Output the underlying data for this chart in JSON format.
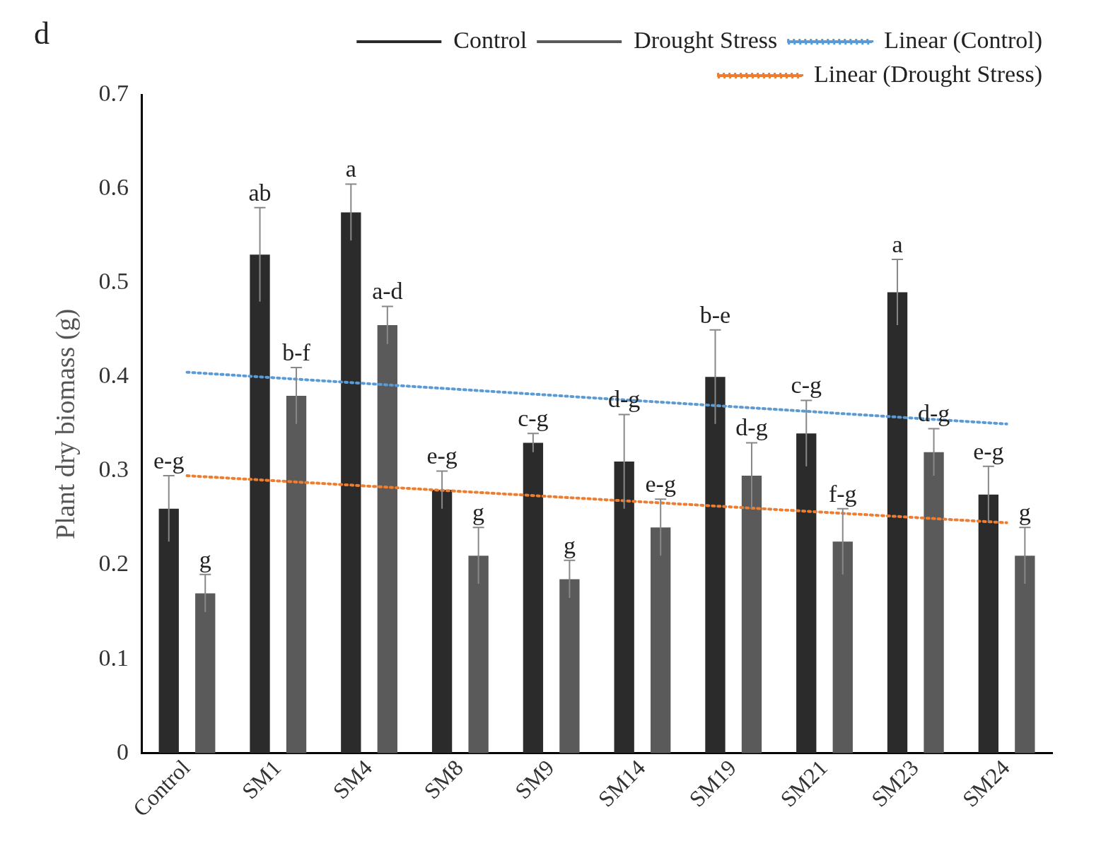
{
  "chart_data": {
    "type": "bar",
    "ylabel": "Plant dry biomass (g)",
    "categories": [
      "Control",
      "SM1",
      "SM4",
      "SM8",
      "SM9",
      "SM14",
      "SM19",
      "SM21",
      "SM23",
      "SM24"
    ],
    "series": [
      {
        "name": "Control",
        "color": "#2b2b2b",
        "values": [
          0.26,
          0.53,
          0.575,
          0.28,
          0.33,
          0.31,
          0.4,
          0.34,
          0.49,
          0.275
        ],
        "errors": [
          0.035,
          0.05,
          0.03,
          0.02,
          0.01,
          0.05,
          0.05,
          0.035,
          0.035,
          0.03
        ],
        "value_labels": [
          "e-g",
          "ab",
          "a",
          "e-g",
          "c-g",
          "d-g",
          "b-e",
          "c-g",
          "a",
          "e-g"
        ]
      },
      {
        "name": "Drought Stress",
        "color": "#5a5a5a",
        "values": [
          0.17,
          0.38,
          0.455,
          0.21,
          0.185,
          0.24,
          0.295,
          0.225,
          0.32,
          0.21
        ],
        "errors": [
          0.02,
          0.03,
          0.02,
          0.03,
          0.02,
          0.03,
          0.035,
          0.035,
          0.025,
          0.03
        ],
        "value_labels": [
          "g",
          "b-f",
          "a-d",
          "g",
          "g",
          "e-g",
          "d-g",
          "f-g",
          "d-g",
          "g"
        ]
      },
      {
        "name": "Linear (Control)",
        "type": "line",
        "color": "#5b9bd5",
        "line_style": "dotted",
        "x": [
          "Control",
          "SM24"
        ],
        "values": [
          0.405,
          0.35
        ]
      },
      {
        "name": "Linear (Drought Stress)",
        "type": "line",
        "color": "#ed7d31",
        "line_style": "dotted",
        "x": [
          "Control",
          "SM24"
        ],
        "values": [
          0.295,
          0.245
        ]
      }
    ],
    "ylim": [
      0,
      0.7
    ],
    "yticks": [
      0,
      0.1,
      0.2,
      0.3,
      0.4,
      0.5,
      0.6,
      0.7
    ],
    "grid": false,
    "legend": "top",
    "marker": "none",
    "annotations": [
      "d"
    ]
  }
}
